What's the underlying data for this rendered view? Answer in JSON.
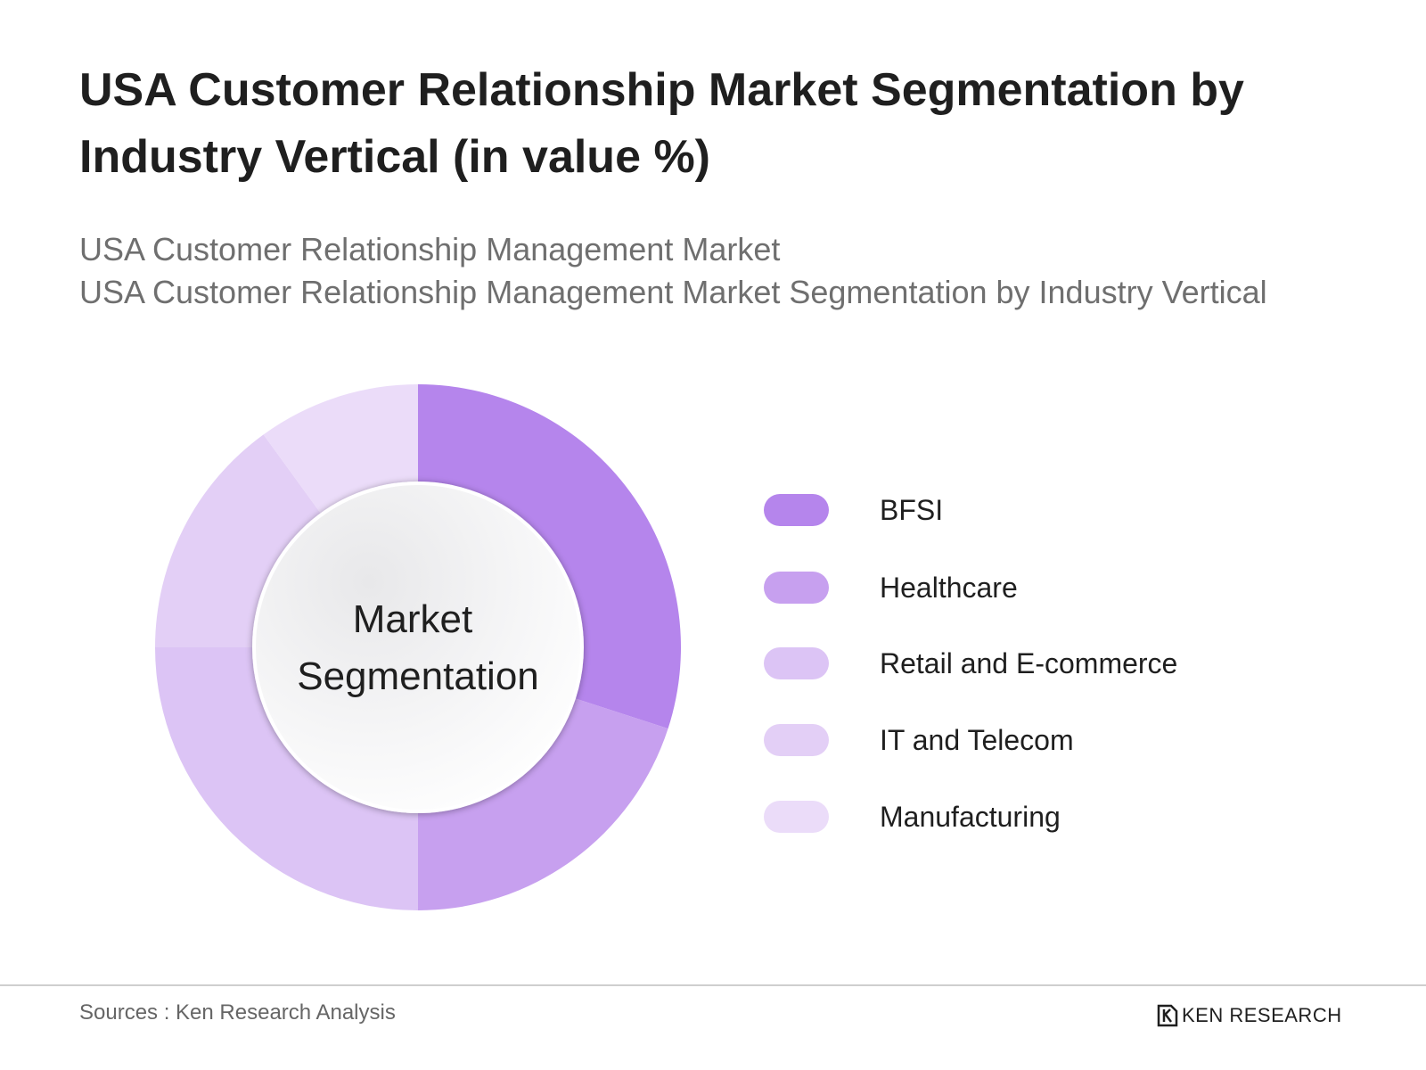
{
  "title": "USA Customer Relationship Market Segmentation by Industry Vertical (in value %)",
  "subtitle_lines": [
    "USA Customer Relationship Management Market",
    "USA Customer Relationship Management Market Segmentation by Industry Vertical"
  ],
  "center_label": [
    "Market",
    "Segmentation"
  ],
  "chart_data": {
    "type": "pie",
    "donut": true,
    "categories": [
      "BFSI",
      "Healthcare",
      "Retail and E-commerce",
      "IT and Telecom",
      "Manufacturing"
    ],
    "values": [
      30,
      20,
      25,
      15,
      10
    ],
    "colors": [
      "#b585ec",
      "#c7a0ef",
      "#dcc4f5",
      "#e3cff6",
      "#ebdcf9"
    ],
    "legend_position": "right",
    "start_angle_deg": 0,
    "direction": "clockwise"
  },
  "footer": {
    "source": "Sources : Ken Research Analysis",
    "brand": "KEN RESEARCH",
    "brand_icon": "ken-research-logo-icon"
  }
}
